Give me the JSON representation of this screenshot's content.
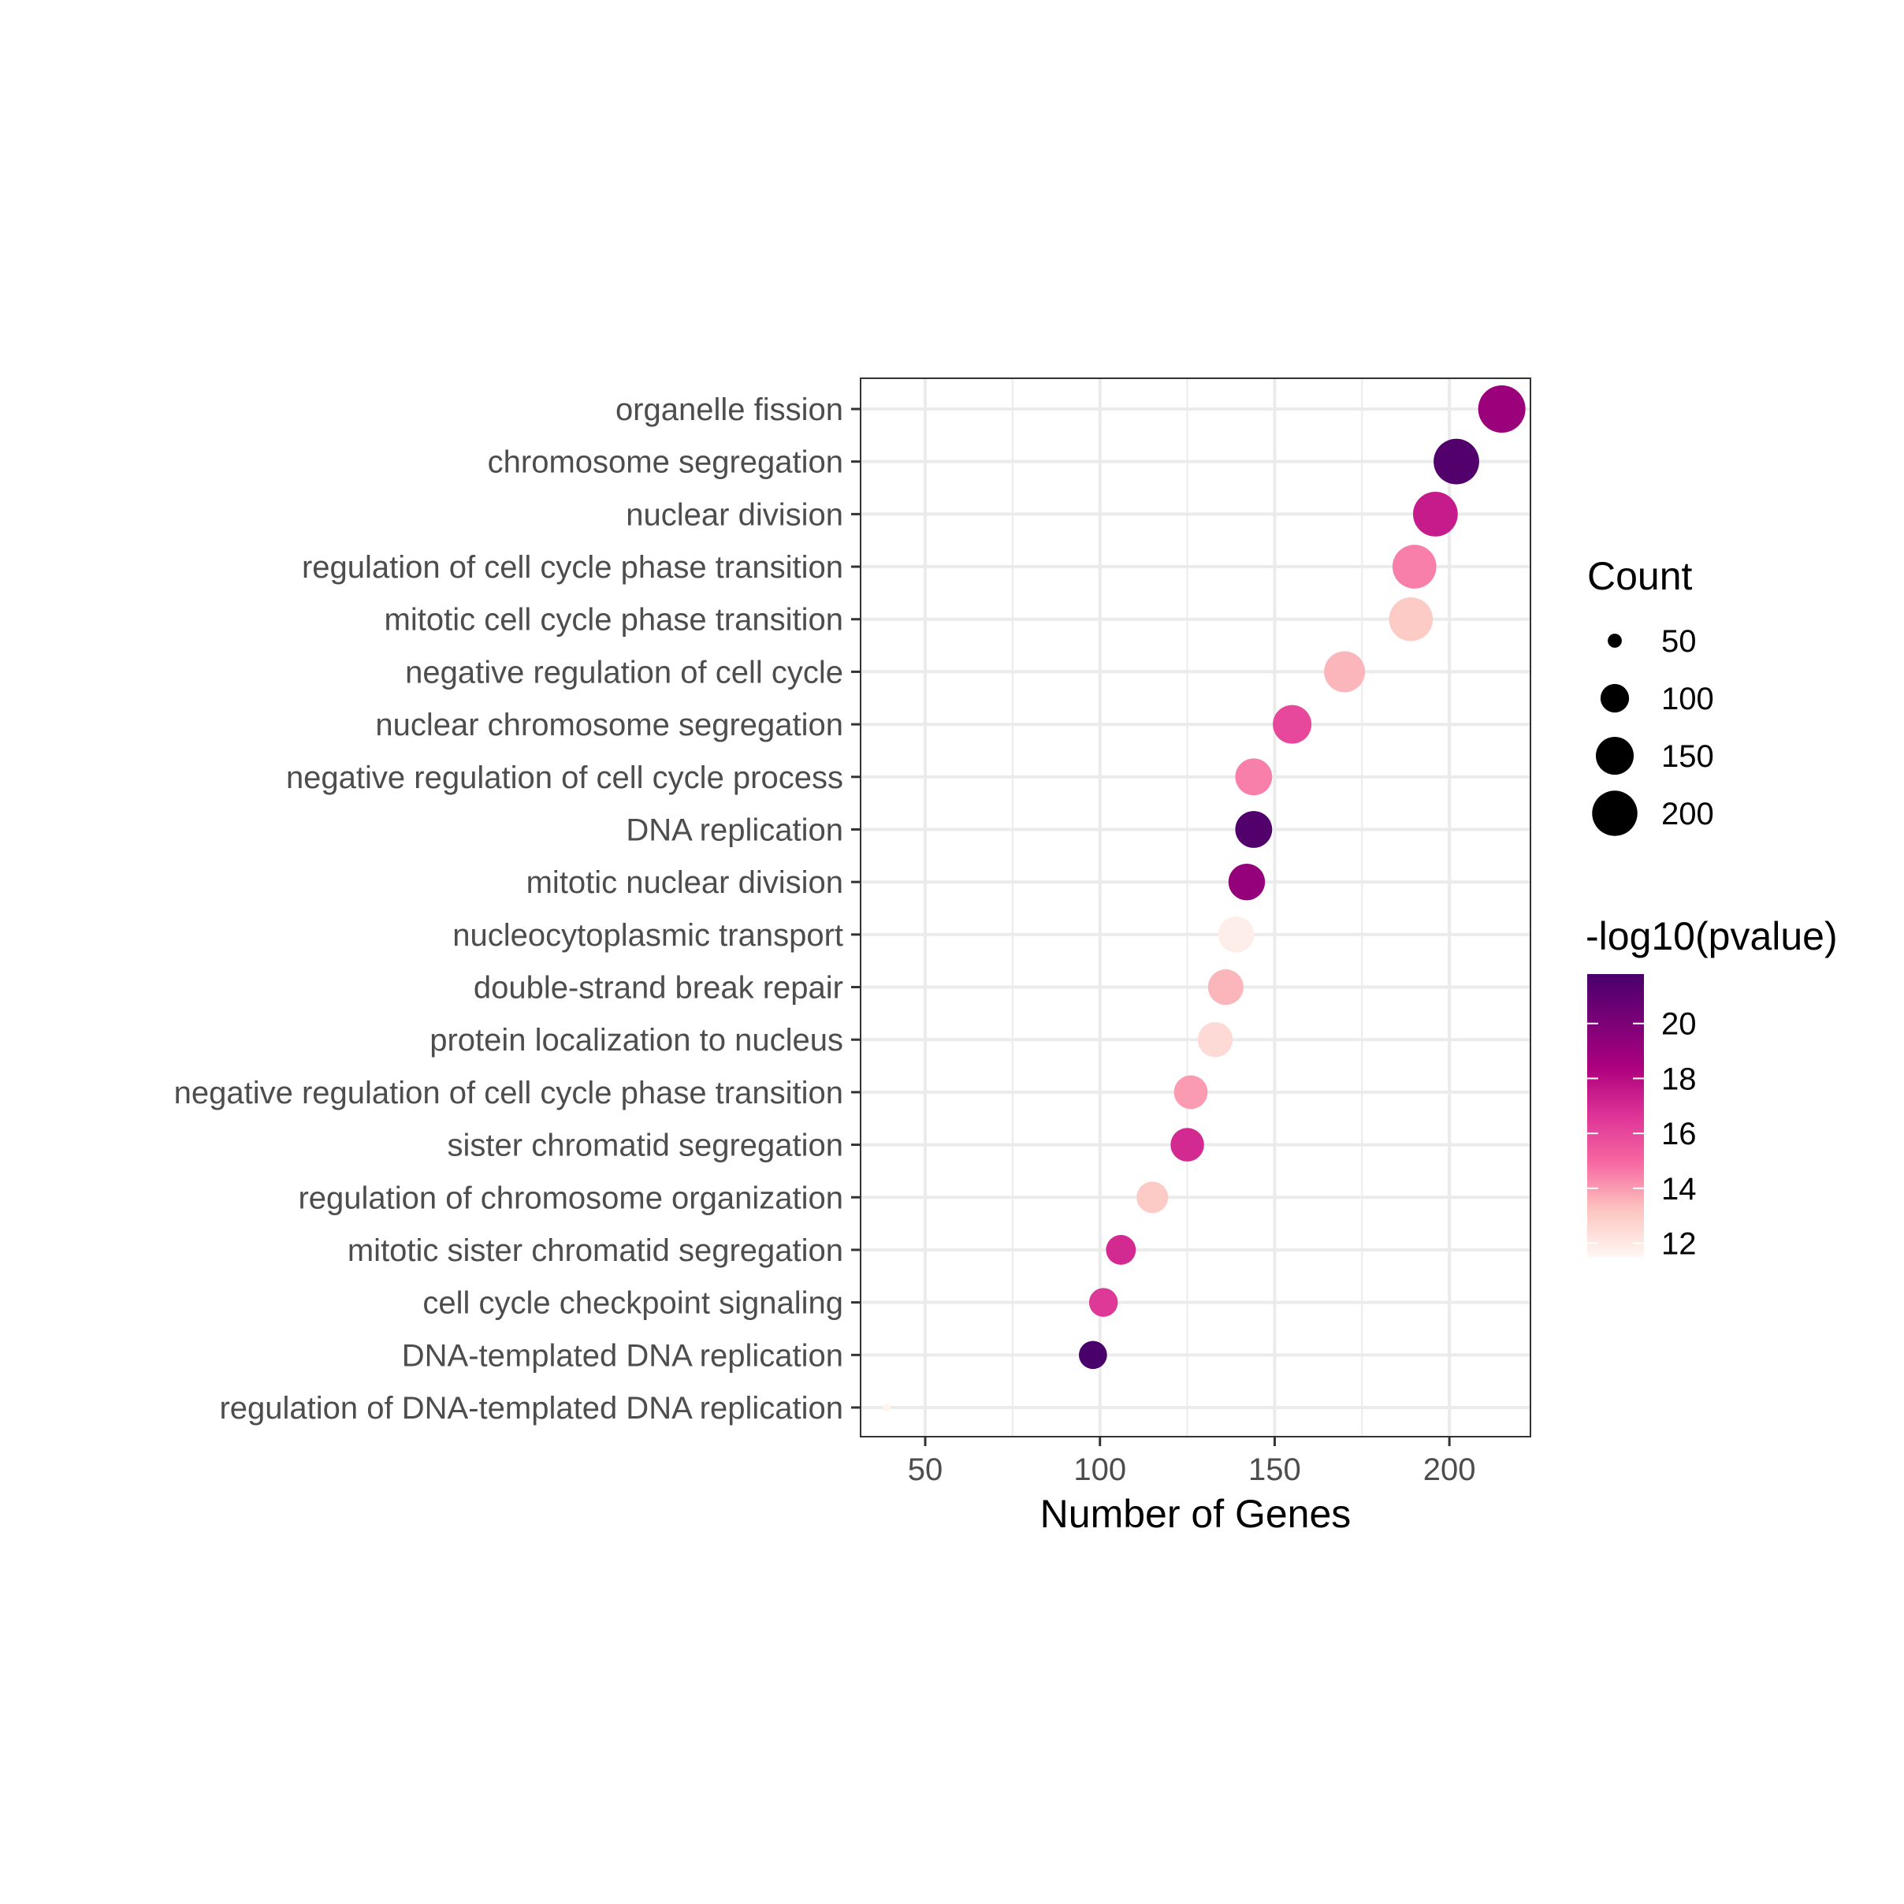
{
  "chart_data": {
    "type": "scatter",
    "title": "",
    "xlabel": "Number of Genes",
    "ylabel": "",
    "xlim": [
      31.5,
      223.2
    ],
    "xticks": [
      50,
      100,
      150,
      200
    ],
    "grid": true,
    "legend_placement": "right",
    "categories": [
      "organelle fission",
      "chromosome segregation",
      "nuclear division",
      "regulation of cell cycle phase transition",
      "mitotic cell cycle phase transition",
      "negative regulation of cell cycle",
      "nuclear chromosome segregation",
      "negative regulation of cell cycle process",
      "DNA replication",
      "mitotic nuclear division",
      "nucleocytoplasmic transport",
      "double-strand break repair",
      "protein localization to nucleus",
      "negative regulation of cell cycle phase transition",
      "sister chromatid segregation",
      "regulation of chromosome organization",
      "mitotic sister chromatid segregation",
      "cell cycle checkpoint signaling",
      "DNA-templated DNA replication",
      "regulation of DNA-templated DNA replication"
    ],
    "count": [
      215,
      202,
      196,
      190,
      189,
      170,
      155,
      144,
      144,
      142,
      139,
      136,
      133,
      126,
      125,
      115,
      106,
      101,
      98,
      39
    ],
    "neg_log10_pvalue": [
      19.0,
      21.5,
      17.5,
      14.5,
      13.0,
      13.5,
      16.0,
      14.5,
      21.5,
      19.2,
      11.8,
      13.5,
      12.5,
      14.0,
      17.0,
      13.0,
      17.0,
      16.5,
      21.8,
      11.6
    ],
    "size_legend": {
      "title": "Count",
      "values": [
        50,
        100,
        150,
        200
      ]
    },
    "color_legend": {
      "title": "-log10(pvalue)",
      "ticks": [
        20,
        18,
        16,
        14,
        12
      ],
      "range": [
        11.5,
        21.8
      ],
      "colors": [
        "#fff7f3",
        "#fcc5c0",
        "#f768a1",
        "#dd3497",
        "#ae017e",
        "#7a0177",
        "#49006a"
      ]
    }
  }
}
